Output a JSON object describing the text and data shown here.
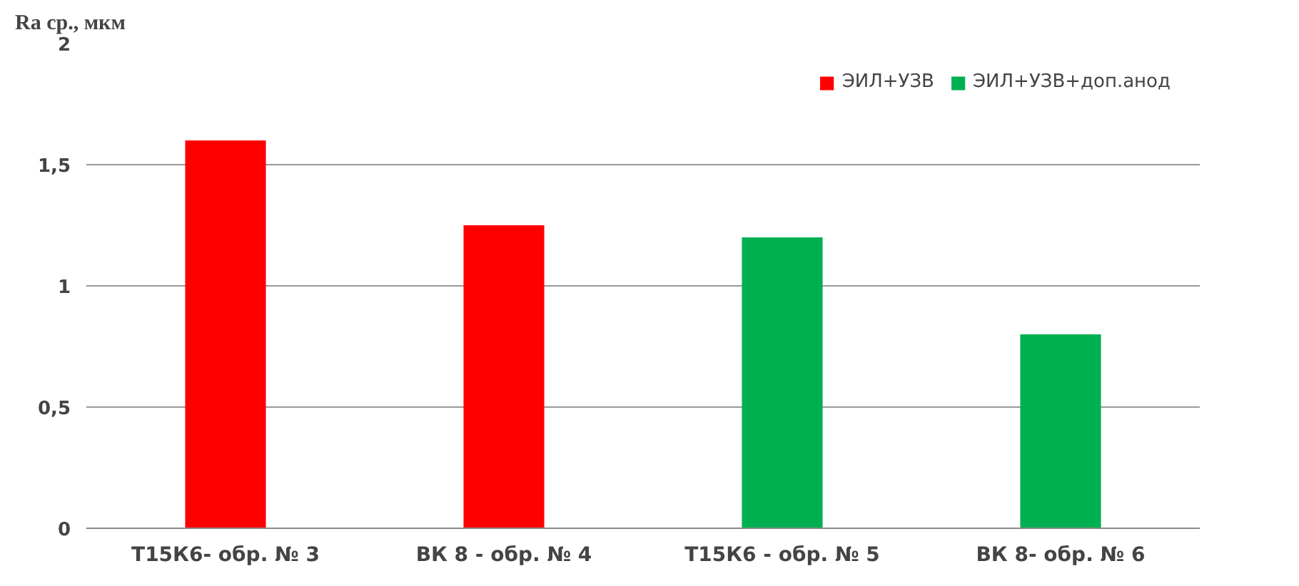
{
  "chart_data": {
    "type": "bar",
    "ylabel": "Ra ср., мкм",
    "categories": [
      "Т15К6- обр. № 3",
      "ВК 8 - обр. № 4",
      "Т15К6 - обр. № 5",
      "ВК 8- обр. № 6"
    ],
    "series": [
      {
        "name": "ЭИЛ+УЗВ",
        "color": "#ff0000",
        "values": [
          1.6,
          1.25,
          null,
          null
        ]
      },
      {
        "name": "ЭИЛ+УЗВ+доп.анод",
        "color": "#00b050",
        "values": [
          null,
          null,
          1.2,
          0.8
        ]
      }
    ],
    "ylim": [
      0,
      2
    ],
    "yticks": [
      0,
      {
        "value": 0.5,
        "label": "0,5"
      },
      1,
      {
        "value": 1.5,
        "label": "1,5"
      },
      2
    ],
    "grid": "y",
    "legend": "top right"
  }
}
